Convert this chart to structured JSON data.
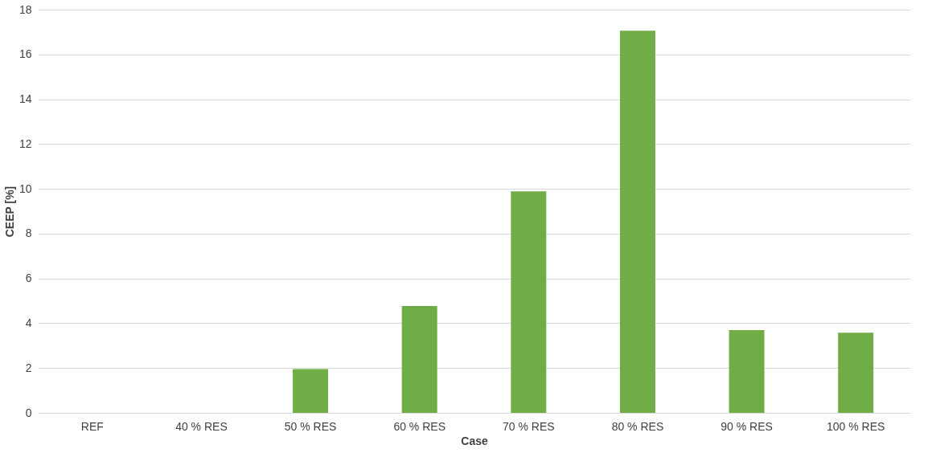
{
  "chart_data": {
    "type": "bar",
    "xlabel": "Case",
    "ylabel": "CEEP [%]",
    "categories": [
      "REF",
      "40 % RES",
      "50 % RES",
      "60 % RES",
      "70 % RES",
      "80 % RES",
      "90 % RES",
      "100 % RES"
    ],
    "values": [
      0,
      0,
      1.95,
      4.77,
      9.89,
      17.06,
      3.69,
      3.58
    ],
    "color": "#70ad47",
    "ylim": [
      0,
      18
    ],
    "yticks": [
      0,
      2,
      4,
      6,
      8,
      10,
      12,
      14,
      16,
      18
    ],
    "grid": "y"
  }
}
